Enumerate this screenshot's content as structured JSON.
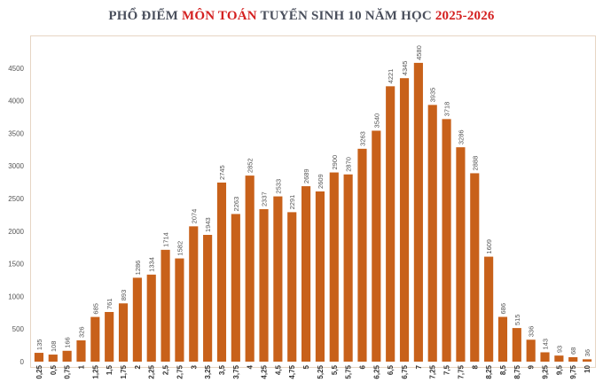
{
  "title": {
    "part1": "PHỔ ĐIỂM ",
    "part2": "MÔN TOÁN",
    "part3": " TUYỂN SINH 10 NĂM HỌC ",
    "part4": "2025-2026"
  },
  "colors": {
    "bar": "#c8611a",
    "title": "#4a4f5c",
    "highlight": "#d42020",
    "frame": "#e6d5c3"
  },
  "chart_data": {
    "type": "bar",
    "title": "PHỔ ĐIỂM MÔN TOÁN TUYỂN SINH 10 NĂM HỌC 2025-2026",
    "xlabel": "",
    "ylabel": "",
    "ylim": [
      0,
      5000
    ],
    "yticks": [
      0,
      500,
      1000,
      1500,
      2000,
      2500,
      3000,
      3500,
      4000,
      4500
    ],
    "grid": false,
    "legend": "none",
    "categories": [
      "0,25",
      "0,5",
      "0,75",
      "1",
      "1,25",
      "1,5",
      "1,75",
      "2",
      "2,25",
      "2,5",
      "2,75",
      "3",
      "3,25",
      "3,5",
      "3,75",
      "4",
      "4,25",
      "4,5",
      "4,75",
      "5",
      "5,25",
      "5,5",
      "5,75",
      "6",
      "6,25",
      "6,5",
      "6,75",
      "7",
      "7,25",
      "7,5",
      "7,75",
      "8",
      "8,25",
      "8,5",
      "8,75",
      "9",
      "9,25",
      "9,5",
      "9,75",
      "10"
    ],
    "values": [
      135,
      108,
      166,
      326,
      685,
      761,
      893,
      1286,
      1334,
      1714,
      1582,
      2074,
      1943,
      2745,
      2263,
      2852,
      2337,
      2533,
      2291,
      2689,
      2609,
      2900,
      2870,
      3263,
      3540,
      4221,
      4345,
      4580,
      3935,
      3718,
      3286,
      2888,
      1609,
      686,
      515,
      336,
      143,
      93,
      68,
      36
    ]
  }
}
